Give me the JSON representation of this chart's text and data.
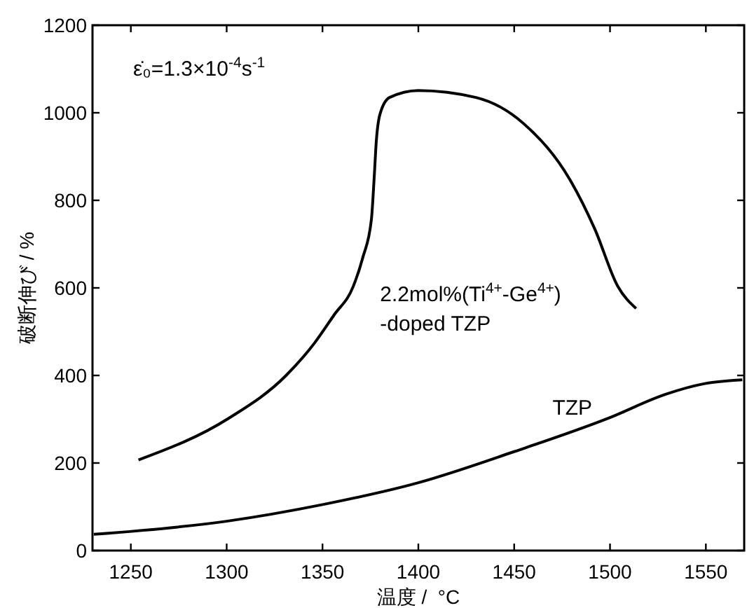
{
  "chart_data": {
    "type": "line",
    "xlabel": "温度 /  °C",
    "ylabel": "破断伸び / %",
    "annotations": [
      "ε̇₀=1.3×10$^{-4}$s$^{-1}$"
    ],
    "xlim": [
      1230,
      1570
    ],
    "xticks": [
      1250,
      1300,
      1350,
      1400,
      1450,
      1500,
      1550
    ],
    "ylim": [
      0,
      1200
    ],
    "yticks": [
      0,
      200,
      400,
      600,
      800,
      1000,
      1200
    ],
    "grid": false,
    "line_style": "solid",
    "series": [
      {
        "name": "2.2mol%(Ti$^{4+}$-Ge$^{4+}$)\n-doped TZP",
        "color": "#000000",
        "x": [
          1254,
          1301,
          1331,
          1346,
          1356,
          1366,
          1371,
          1375.5,
          1377,
          1378,
          1380,
          1385,
          1400,
          1430,
          1455,
          1479.5,
          1492,
          1504,
          1513.6
        ],
        "values": [
          207,
          302,
          400,
          475,
          538,
          603,
          669,
          756,
          855,
          931,
          997,
          1035,
          1051,
          1035,
          975,
          844,
          735,
          604,
          553
        ]
      },
      {
        "name": "TZP",
        "color": "#000000",
        "x": [
          1230.7,
          1300,
          1350,
          1400,
          1450,
          1499.5,
          1529,
          1549,
          1569
        ],
        "values": [
          37,
          67,
          105,
          155,
          226,
          303,
          357,
          381,
          390
        ]
      }
    ]
  }
}
